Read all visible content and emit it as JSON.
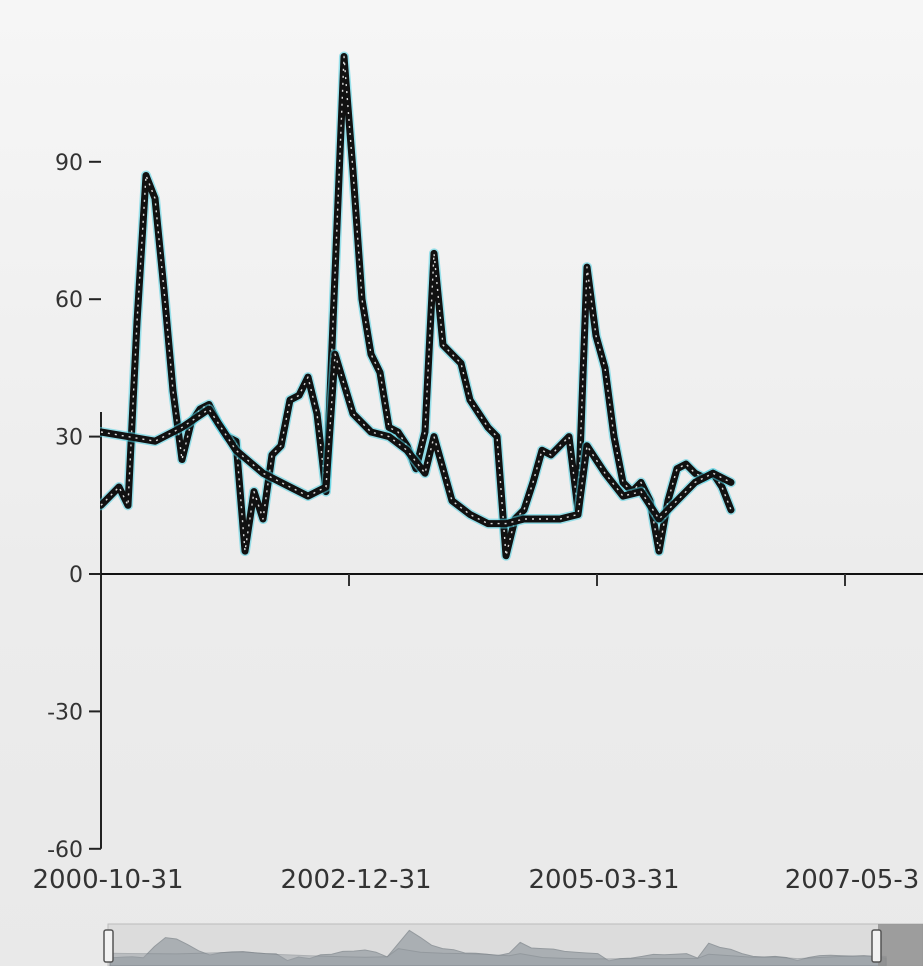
{
  "chart_data": {
    "type": "line",
    "title": "",
    "xlabel": "",
    "ylabel": "",
    "x_ticks": [
      "2000-10-31",
      "2002-12-31",
      "2005-03-31",
      "2007-05-3"
    ],
    "y_ticks": [
      90,
      60,
      30,
      0,
      -30,
      -60
    ],
    "ylim": [
      -60,
      120
    ],
    "xlim": [
      "2000-10-31",
      "2008-10-31"
    ],
    "grid": false,
    "legend": "none",
    "baseline": 0,
    "series": [
      {
        "color": "#111111",
        "points": [
          [
            "2000-10-31",
            15
          ],
          [
            "2000-12-31",
            19
          ],
          [
            "2001-01-31",
            15
          ],
          [
            "2001-02-28",
            55
          ],
          [
            "2001-03-31",
            87
          ],
          [
            "2001-04-30",
            82
          ],
          [
            "2001-05-31",
            62
          ],
          [
            "2001-06-30",
            40
          ],
          [
            "2001-07-31",
            25
          ],
          [
            "2001-08-31",
            33
          ],
          [
            "2001-09-30",
            36
          ],
          [
            "2001-10-31",
            37
          ],
          [
            "2001-11-30",
            33
          ],
          [
            "2001-12-31",
            30
          ],
          [
            "2002-01-31",
            29
          ],
          [
            "2002-02-28",
            5
          ],
          [
            "2002-03-31",
            18
          ],
          [
            "2002-04-30",
            12
          ],
          [
            "2002-05-31",
            26
          ],
          [
            "2002-06-30",
            28
          ],
          [
            "2002-07-31",
            38
          ],
          [
            "2002-08-31",
            39
          ],
          [
            "2002-09-30",
            43
          ],
          [
            "2002-10-31",
            35
          ],
          [
            "2002-11-30",
            18
          ],
          [
            "2003-01-31",
            113
          ],
          [
            "2003-02-28",
            88
          ],
          [
            "2003-03-31",
            60
          ],
          [
            "2003-04-30",
            48
          ],
          [
            "2003-05-31",
            44
          ],
          [
            "2003-06-30",
            32
          ],
          [
            "2003-07-31",
            31
          ],
          [
            "2003-08-31",
            28
          ],
          [
            "2003-09-30",
            23
          ],
          [
            "2003-10-31",
            31
          ],
          [
            "2003-11-30",
            70
          ],
          [
            "2003-12-31",
            50
          ],
          [
            "2004-01-31",
            48
          ],
          [
            "2004-02-29",
            46
          ],
          [
            "2004-03-31",
            38
          ],
          [
            "2004-04-30",
            35
          ],
          [
            "2004-05-31",
            32
          ],
          [
            "2004-06-30",
            30
          ],
          [
            "2004-07-31",
            4
          ],
          [
            "2004-08-31",
            12
          ],
          [
            "2004-09-30",
            14
          ],
          [
            "2004-10-31",
            20
          ],
          [
            "2004-11-30",
            27
          ],
          [
            "2004-12-31",
            26
          ],
          [
            "2005-01-31",
            28
          ],
          [
            "2005-02-28",
            30
          ],
          [
            "2005-03-31",
            14
          ],
          [
            "2005-04-30",
            67
          ],
          [
            "2005-05-31",
            52
          ],
          [
            "2005-06-30",
            45
          ],
          [
            "2005-07-31",
            30
          ],
          [
            "2005-08-31",
            20
          ],
          [
            "2005-09-30",
            18
          ],
          [
            "2005-10-31",
            20
          ],
          [
            "2005-11-30",
            16
          ],
          [
            "2005-12-31",
            5
          ],
          [
            "2006-01-31",
            16
          ],
          [
            "2006-02-28",
            23
          ],
          [
            "2006-03-31",
            24
          ],
          [
            "2006-04-30",
            22
          ],
          [
            "2006-05-31",
            21
          ],
          [
            "2006-06-30",
            22
          ],
          [
            "2006-07-31",
            19
          ],
          [
            "2006-08-31",
            14
          ]
        ]
      },
      {
        "color": "#111111",
        "points": [
          [
            "2000-10-31",
            31
          ],
          [
            "2001-01-31",
            30
          ],
          [
            "2001-04-30",
            29
          ],
          [
            "2001-07-31",
            32
          ],
          [
            "2001-10-31",
            36
          ],
          [
            "2002-01-31",
            27
          ],
          [
            "2002-04-30",
            22
          ],
          [
            "2002-07-31",
            19
          ],
          [
            "2002-09-30",
            17
          ],
          [
            "2002-11-30",
            19
          ],
          [
            "2002-12-31",
            48
          ],
          [
            "2003-02-28",
            35
          ],
          [
            "2003-04-30",
            31
          ],
          [
            "2003-06-30",
            30
          ],
          [
            "2003-08-31",
            27
          ],
          [
            "2003-10-31",
            22
          ],
          [
            "2003-11-30",
            30
          ],
          [
            "2004-01-31",
            16
          ],
          [
            "2004-03-31",
            13
          ],
          [
            "2004-05-31",
            11
          ],
          [
            "2004-07-31",
            11
          ],
          [
            "2004-09-30",
            12
          ],
          [
            "2004-11-30",
            12
          ],
          [
            "2005-01-31",
            12
          ],
          [
            "2005-03-31",
            13
          ],
          [
            "2005-04-30",
            28
          ],
          [
            "2005-06-30",
            22
          ],
          [
            "2005-08-31",
            17
          ],
          [
            "2005-10-31",
            18
          ],
          [
            "2005-12-31",
            12
          ],
          [
            "2006-02-28",
            16
          ],
          [
            "2006-04-30",
            20
          ],
          [
            "2006-06-30",
            22
          ],
          [
            "2006-08-31",
            20
          ]
        ]
      }
    ],
    "navigator": {
      "range_start": "2000-10-31",
      "range_end": "2006-07-31"
    }
  }
}
